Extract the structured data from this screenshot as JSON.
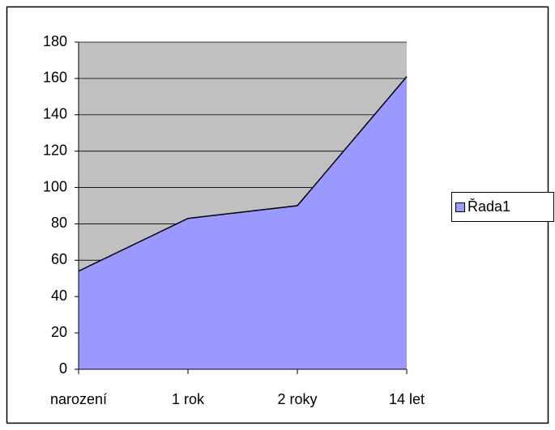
{
  "chart_data": {
    "type": "area",
    "categories": [
      "narození",
      "1 rok",
      "2 roky",
      "14 let"
    ],
    "series": [
      {
        "name": "Řada1",
        "color": "#9999ff",
        "values": [
          54,
          83,
          90,
          161
        ]
      }
    ],
    "ylim": [
      0,
      180
    ],
    "yticks": [
      0,
      20,
      40,
      60,
      80,
      100,
      120,
      140,
      160,
      180
    ],
    "grid": true,
    "plot_background": "#c0c0c0",
    "legend": "right"
  }
}
